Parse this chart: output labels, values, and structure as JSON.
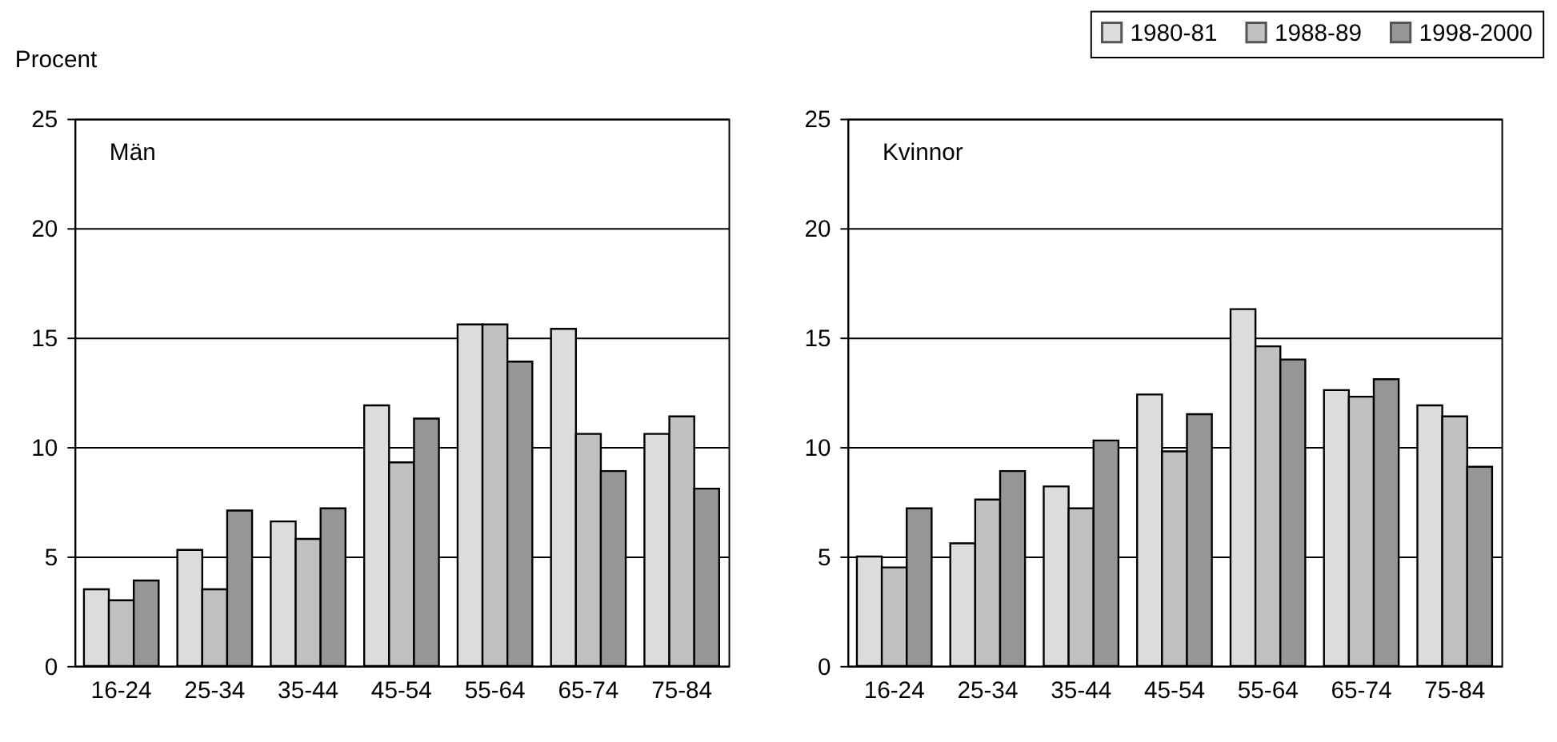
{
  "chart_data": [
    {
      "type": "bar",
      "title": "Män",
      "ylabel": "Procent",
      "categories": [
        "16-24",
        "25-34",
        "35-44",
        "45-54",
        "55-64",
        "65-74",
        "75-84"
      ],
      "series": [
        {
          "name": "1980-81",
          "color": "#dcdcdc",
          "values": [
            3.5,
            5.3,
            6.6,
            11.9,
            15.6,
            15.4,
            10.6
          ]
        },
        {
          "name": "1988-89",
          "color": "#c0c0c0",
          "values": [
            3.0,
            3.5,
            5.8,
            9.3,
            15.6,
            10.6,
            11.4
          ]
        },
        {
          "name": "1998-2000",
          "color": "#969696",
          "values": [
            3.9,
            7.1,
            7.2,
            11.3,
            13.9,
            8.9,
            8.1
          ]
        }
      ],
      "ylim": [
        0,
        25
      ],
      "yticks": [
        0,
        5,
        10,
        15,
        20,
        25
      ],
      "grid": "y",
      "legend": "top right"
    },
    {
      "type": "bar",
      "title": "Kvinnor",
      "categories": [
        "16-24",
        "25-34",
        "35-44",
        "45-54",
        "55-64",
        "65-74",
        "75-84"
      ],
      "series": [
        {
          "name": "1980-81",
          "color": "#dcdcdc",
          "values": [
            5.0,
            5.6,
            8.2,
            12.4,
            16.3,
            12.6,
            11.9
          ]
        },
        {
          "name": "1988-89",
          "color": "#c0c0c0",
          "values": [
            4.5,
            7.6,
            7.2,
            9.8,
            14.6,
            12.3,
            11.4
          ]
        },
        {
          "name": "1998-2000",
          "color": "#969696",
          "values": [
            7.2,
            8.9,
            10.3,
            11.5,
            14.0,
            13.1,
            9.1
          ]
        }
      ],
      "ylim": [
        0,
        25
      ],
      "yticks": [
        0,
        5,
        10,
        15,
        20,
        25
      ],
      "grid": "y",
      "legend": "top right"
    }
  ]
}
